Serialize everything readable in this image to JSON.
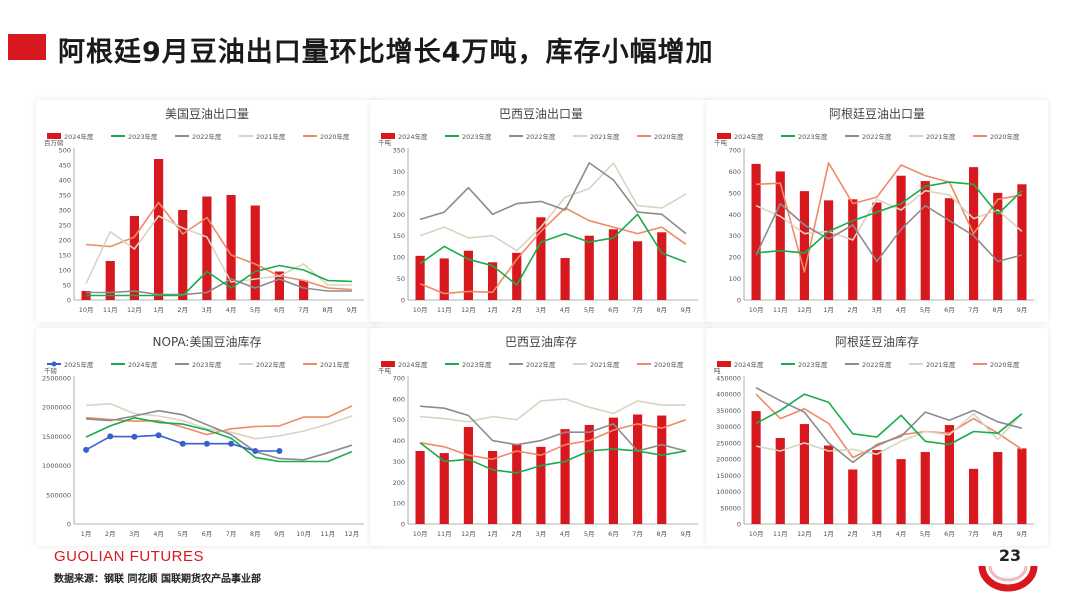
{
  "slide_title": "阿根廷9月豆油出口量环比增长4万吨，库存小幅增加",
  "footer": {
    "logo": "GUOLIAN FUTURES",
    "source": "数据来源：钢联  同花顺  国联期货农产品事业部",
    "page_number": "23"
  },
  "colors": {
    "accent": "#d7191f",
    "c2024": "#d7191f",
    "c2023": "#1aab4a",
    "c2022": "#8c8c8c",
    "c2021": "#d9d4c2",
    "c2020": "#ef8a67",
    "c2025": "#3a5fcd"
  },
  "chart_data": [
    {
      "type": "bar",
      "title": "美国豆油出口量",
      "unit": "百万磅",
      "ylim": [
        0,
        500
      ],
      "yticks": [
        0,
        50,
        100,
        150,
        200,
        250,
        300,
        350,
        400,
        450,
        500
      ],
      "categories": [
        "10月",
        "11月",
        "12月",
        "1月",
        "2月",
        "3月",
        "4月",
        "5月",
        "6月",
        "7月",
        "8月",
        "9月"
      ],
      "legend": [
        "2024年度",
        "2023年度",
        "2022年度",
        "2021年度",
        "2020年度"
      ],
      "series": [
        {
          "name": "2024年度",
          "kind": "bar",
          "color": "#d7191f",
          "values": [
            30,
            130,
            280,
            470,
            300,
            345,
            350,
            315,
            95,
            65,
            null,
            null
          ]
        },
        {
          "name": "2023年度",
          "kind": "line",
          "color": "#1aab4a",
          "values": [
            15,
            15,
            15,
            15,
            15,
            95,
            40,
            95,
            115,
            100,
            65,
            62
          ]
        },
        {
          "name": "2022年度",
          "kind": "line",
          "color": "#8c8c8c",
          "values": [
            25,
            25,
            30,
            18,
            18,
            25,
            70,
            40,
            70,
            40,
            30,
            30
          ]
        },
        {
          "name": "2021年度",
          "kind": "line",
          "color": "#d9d4c2",
          "values": [
            55,
            228,
            170,
            280,
            240,
            210,
            60,
            70,
            80,
            120,
            50,
            50
          ]
        },
        {
          "name": "2020年度",
          "kind": "line",
          "color": "#ef8a67",
          "values": [
            185,
            178,
            210,
            325,
            220,
            275,
            150,
            120,
            80,
            65,
            40,
            35
          ]
        }
      ]
    },
    {
      "type": "bar",
      "title": "巴西豆油出口量",
      "unit": "千吨",
      "ylim": [
        0,
        350
      ],
      "yticks": [
        0,
        50,
        100,
        150,
        200,
        250,
        300,
        350
      ],
      "categories": [
        "10月",
        "11月",
        "12月",
        "1月",
        "2月",
        "3月",
        "4月",
        "5月",
        "6月",
        "7月",
        "8月",
        "9月"
      ],
      "legend": [
        "2024年度",
        "2023年度",
        "2022年度",
        "2021年度",
        "2020年度"
      ],
      "series": [
        {
          "name": "2024年度",
          "kind": "bar",
          "color": "#d7191f",
          "values": [
            103,
            97,
            115,
            88,
            110,
            193,
            98,
            150,
            165,
            137,
            158,
            null
          ]
        },
        {
          "name": "2023年度",
          "kind": "line",
          "color": "#1aab4a",
          "values": [
            85,
            125,
            95,
            80,
            35,
            135,
            155,
            135,
            145,
            200,
            110,
            88
          ]
        },
        {
          "name": "2022年度",
          "kind": "line",
          "color": "#8c8c8c",
          "values": [
            188,
            205,
            262,
            200,
            225,
            230,
            210,
            320,
            280,
            205,
            200,
            155
          ]
        },
        {
          "name": "2021年度",
          "kind": "line",
          "color": "#d9d4c2",
          "values": [
            150,
            170,
            145,
            150,
            115,
            170,
            240,
            260,
            320,
            220,
            215,
            247
          ]
        },
        {
          "name": "2020年度",
          "kind": "line",
          "color": "#ef8a67",
          "values": [
            38,
            15,
            20,
            18,
            95,
            160,
            215,
            185,
            170,
            155,
            170,
            130
          ]
        }
      ]
    },
    {
      "type": "bar",
      "title": "阿根廷豆油出口量",
      "unit": "千吨",
      "ylim": [
        0,
        700
      ],
      "yticks": [
        0,
        100,
        200,
        300,
        400,
        500,
        600,
        700
      ],
      "categories": [
        "10月",
        "11月",
        "12月",
        "1月",
        "2月",
        "3月",
        "4月",
        "5月",
        "6月",
        "7月",
        "8月",
        "9月"
      ],
      "legend": [
        "2024年度",
        "2023年度",
        "2022年度",
        "2021年度",
        "2020年度"
      ],
      "series": [
        {
          "name": "2024年度",
          "kind": "bar",
          "color": "#d7191f",
          "values": [
            635,
            600,
            508,
            465,
            470,
            455,
            580,
            555,
            475,
            620,
            500,
            540
          ]
        },
        {
          "name": "2023年度",
          "kind": "line",
          "color": "#1aab4a",
          "values": [
            220,
            230,
            220,
            320,
            370,
            410,
            450,
            530,
            550,
            540,
            400,
            510
          ]
        },
        {
          "name": "2022年度",
          "kind": "line",
          "color": "#8c8c8c",
          "values": [
            210,
            450,
            350,
            285,
            350,
            180,
            330,
            440,
            370,
            300,
            180,
            210
          ]
        },
        {
          "name": "2021年度",
          "kind": "line",
          "color": "#d9d4c2",
          "values": [
            440,
            390,
            310,
            320,
            280,
            470,
            420,
            510,
            490,
            380,
            420,
            320
          ]
        },
        {
          "name": "2020年度",
          "kind": "line",
          "color": "#ef8a67",
          "values": [
            540,
            545,
            130,
            640,
            450,
            480,
            630,
            580,
            550,
            310,
            470,
            490
          ]
        }
      ]
    },
    {
      "type": "line",
      "title": "NOPA:美国豆油库存",
      "unit": "千磅",
      "ylim": [
        0,
        2500000
      ],
      "yticks": [
        0,
        500000,
        1000000,
        1500000,
        2000000,
        2500000
      ],
      "categories": [
        "1月",
        "2月",
        "3月",
        "4月",
        "5月",
        "6月",
        "7月",
        "8月",
        "9月",
        "10月",
        "11月",
        "12月"
      ],
      "legend": [
        "2025年度",
        "2024年度",
        "2023年度",
        "2022年度",
        "2021年度"
      ],
      "series": [
        {
          "name": "2025年度",
          "kind": "line",
          "markers": true,
          "color": "#3a5fcd",
          "values": [
            1270000,
            1500000,
            1495000,
            1520000,
            1375000,
            1375000,
            1375000,
            1250000,
            1250000,
            null,
            null,
            null
          ]
        },
        {
          "name": "2024年度",
          "kind": "line",
          "color": "#1aab4a",
          "values": [
            1490000,
            1680000,
            1820000,
            1740000,
            1710000,
            1610000,
            1470000,
            1140000,
            1070000,
            1070000,
            1070000,
            1240000
          ]
        },
        {
          "name": "2023年度",
          "kind": "line",
          "color": "#8c8c8c",
          "values": [
            1800000,
            1770000,
            1850000,
            1940000,
            1870000,
            1700000,
            1530000,
            1240000,
            1120000,
            1100000,
            1220000,
            1350000
          ]
        },
        {
          "name": "2022年度",
          "kind": "line",
          "color": "#d9d4c2",
          "values": [
            2030000,
            2060000,
            1890000,
            1850000,
            1770000,
            1630000,
            1570000,
            1460000,
            1510000,
            1590000,
            1710000,
            1850000
          ]
        },
        {
          "name": "2021年度",
          "kind": "line",
          "color": "#ef8a67",
          "values": [
            1820000,
            1790000,
            1760000,
            1770000,
            1660000,
            1530000,
            1630000,
            1670000,
            1680000,
            1830000,
            1830000,
            2020000
          ]
        }
      ]
    },
    {
      "type": "bar",
      "title": "巴西豆油库存",
      "unit": "千吨",
      "ylim": [
        0,
        700
      ],
      "yticks": [
        0,
        100,
        200,
        300,
        400,
        500,
        600,
        700
      ],
      "categories": [
        "10月",
        "11月",
        "12月",
        "1月",
        "2月",
        "3月",
        "4月",
        "5月",
        "6月",
        "7月",
        "8月",
        "9月"
      ],
      "legend": [
        "2024年度",
        "2023年度",
        "2022年度",
        "2021年度",
        "2020年度"
      ],
      "series": [
        {
          "name": "2024年度",
          "kind": "bar",
          "color": "#d7191f",
          "values": [
            350,
            340,
            465,
            350,
            380,
            370,
            455,
            475,
            510,
            525,
            520,
            null
          ]
        },
        {
          "name": "2023年度",
          "kind": "line",
          "color": "#1aab4a",
          "values": [
            390,
            300,
            310,
            260,
            245,
            280,
            300,
            350,
            360,
            350,
            330,
            350
          ]
        },
        {
          "name": "2022年度",
          "kind": "line",
          "color": "#8c8c8c",
          "values": [
            565,
            555,
            520,
            400,
            380,
            400,
            440,
            440,
            480,
            350,
            380,
            350
          ]
        },
        {
          "name": "2021年度",
          "kind": "line",
          "color": "#d9d4c2",
          "values": [
            515,
            505,
            490,
            515,
            500,
            590,
            600,
            560,
            530,
            590,
            570,
            570
          ]
        },
        {
          "name": "2020年度",
          "kind": "line",
          "color": "#ef8a67",
          "values": [
            390,
            370,
            330,
            310,
            350,
            330,
            380,
            400,
            450,
            480,
            460,
            500
          ]
        }
      ]
    },
    {
      "type": "bar",
      "title": "阿根廷豆油库存",
      "unit": "吨",
      "ylim": [
        0,
        450000
      ],
      "yticks": [
        0,
        50000,
        100000,
        150000,
        200000,
        250000,
        300000,
        350000,
        400000,
        450000
      ],
      "categories": [
        "10月",
        "11月",
        "12月",
        "1月",
        "2月",
        "3月",
        "4月",
        "5月",
        "6月",
        "7月",
        "8月",
        "9月"
      ],
      "legend": [
        "2024年度",
        "2023年度",
        "2022年度",
        "2021年度",
        "2020年度"
      ],
      "series": [
        {
          "name": "2024年度",
          "kind": "bar",
          "color": "#d7191f",
          "values": [
            348000,
            265000,
            308000,
            242000,
            168000,
            228000,
            200000,
            222000,
            305000,
            170000,
            222000,
            233000
          ]
        },
        {
          "name": "2023年度",
          "kind": "line",
          "color": "#1aab4a",
          "values": [
            310000,
            350000,
            400000,
            375000,
            278000,
            268000,
            335000,
            255000,
            245000,
            285000,
            280000,
            340000
          ]
        },
        {
          "name": "2022年度",
          "kind": "line",
          "color": "#8c8c8c",
          "values": [
            420000,
            380000,
            345000,
            250000,
            190000,
            245000,
            270000,
            345000,
            320000,
            350000,
            315000,
            295000
          ]
        },
        {
          "name": "2021年度",
          "kind": "line",
          "color": "#d9d4c2",
          "values": [
            240000,
            225000,
            250000,
            225000,
            230000,
            215000,
            255000,
            285000,
            275000,
            340000,
            260000,
            340000
          ]
        },
        {
          "name": "2020年度",
          "kind": "line",
          "color": "#ef8a67",
          "values": [
            400000,
            325000,
            355000,
            310000,
            205000,
            240000,
            275000,
            285000,
            280000,
            325000,
            280000,
            230000
          ]
        }
      ]
    }
  ]
}
